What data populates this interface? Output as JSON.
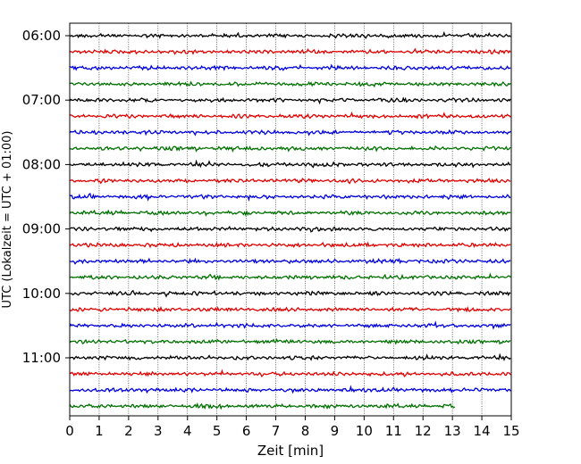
{
  "chart_data": {
    "type": "line",
    "title": "",
    "xlabel": "Zeit  [min]",
    "ylabel": "UTC (Lokalzeit = UTC + 01:00)",
    "xlim": [
      0,
      15
    ],
    "xticks": [
      0,
      1,
      2,
      3,
      4,
      5,
      6,
      7,
      8,
      9,
      10,
      11,
      12,
      13,
      14,
      15
    ],
    "x_grid": "dotted vertical lines at each minute",
    "yticks": [
      "06:00",
      "07:00",
      "08:00",
      "09:00",
      "10:00",
      "11:00"
    ],
    "row_minutes": 15,
    "rows_start": "06:00",
    "rows_count": 24,
    "trace_colors": [
      "#000000",
      "#e00000",
      "#0000dd",
      "#007000"
    ],
    "last_row_end_min": 13.1,
    "series_note": "seismogram helicorder traces, one 15-min row per trace, noisy around baseline"
  }
}
